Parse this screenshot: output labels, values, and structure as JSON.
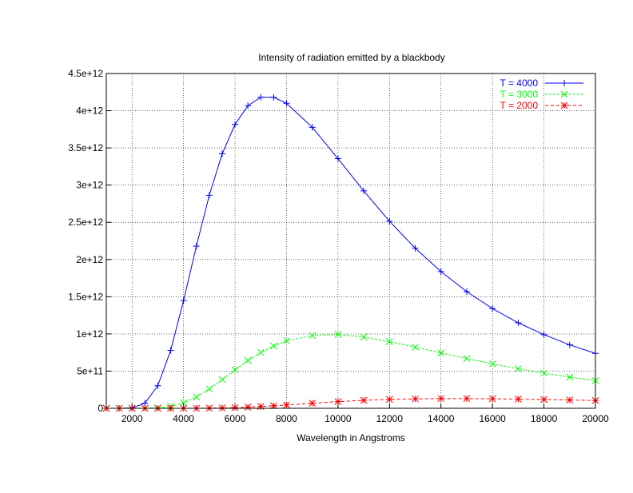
{
  "chart_data": {
    "type": "line",
    "title": "Intensity of radiation emitted by a blackbody",
    "xlabel": "Wavelength in Angstroms",
    "ylabel": "",
    "xlim": [
      1000,
      20000
    ],
    "ylim": [
      0,
      4500000000000.0
    ],
    "grid": true,
    "legend_position": "top-right",
    "xticks": [
      2000,
      4000,
      6000,
      8000,
      10000,
      12000,
      14000,
      16000,
      18000,
      20000
    ],
    "xtick_labels": [
      "2000",
      "4000",
      "6000",
      "8000",
      "10000",
      "12000",
      "14000",
      "16000",
      "18000",
      "20000"
    ],
    "yticks": [
      0,
      500000000000.0,
      1000000000000.0,
      1500000000000.0,
      2000000000000.0,
      2500000000000.0,
      3000000000000.0,
      3500000000000.0,
      4000000000000.0,
      4500000000000.0
    ],
    "ytick_labels": [
      "0",
      "5e+11",
      "1e+12",
      "1.5e+12",
      "2e+12",
      "2.5e+12",
      "3e+12",
      "3.5e+12",
      "4e+12",
      "4.5e+12"
    ],
    "x": [
      1000,
      1500,
      2000,
      2500,
      3000,
      3500,
      4000,
      4500,
      5000,
      5500,
      6000,
      6500,
      7000,
      7500,
      8000,
      9000,
      10000,
      11000,
      12000,
      13000,
      14000,
      15000,
      16000,
      17000,
      18000,
      19000,
      20000
    ],
    "series": [
      {
        "name": "T = 4000",
        "color": "#0000ff",
        "marker": "plus",
        "dash": "",
        "values": [
          0,
          60000000.0,
          5700000000.0,
          69000000000.0,
          304000000000.0,
          778000000000.0,
          1447000000000.0,
          2180000000000.0,
          2864000000000.0,
          3420000000000.0,
          3815000000000.0,
          4068000000000.0,
          4181000000000.0,
          4180000000000.0,
          4100000000000.0,
          3777000000000.0,
          3356000000000.0,
          2922000000000.0,
          2514000000000.0,
          2152000000000.0,
          1838000000000.0,
          1568000000000.0,
          1341000000000.0,
          1149000000000.0,
          990000000000.0,
          853000000000.0,
          738000000000.0
        ]
      },
      {
        "name": "T = 3000",
        "color": "#00ff00",
        "marker": "cross",
        "dash": "3,2",
        "values": [
          0,
          0,
          14000000.0,
          570000000.0,
          5600000000.0,
          25400000000.0,
          72000000000.0,
          152000000000.0,
          260000000000.0,
          386000000000.0,
          517000000000.0,
          642000000000.0,
          750000000000.0,
          838000000000.0,
          908000000000.0,
          978000000000.0,
          993000000000.0,
          957000000000.0,
          896000000000.0,
          822000000000.0,
          744000000000.0,
          669000000000.0,
          597000000000.0,
          531000000000.0,
          472000000000.0,
          419000000000.0,
          372000000000.0
        ]
      },
      {
        "name": "T = 2000",
        "color": "#ff0000",
        "marker": "star",
        "dash": "4,3",
        "values": [
          0,
          0,
          0,
          0,
          1900000.0,
          27000000.0,
          180000000.0,
          740000000.0,
          2150000000.0,
          4900000000.0,
          9500000000.0,
          16000000000.0,
          24300000000.0,
          34200000000.0,
          45200000000.0,
          68100000000.0,
          89600000000.0,
          107000000000.0,
          119500000000.0,
          127000000000.0,
          130700000000.0,
          130700000000.0,
          128000000000.0,
          123500000000.0,
          118000000000.0,
          111600000000.0,
          105000000000.0
        ]
      }
    ]
  }
}
